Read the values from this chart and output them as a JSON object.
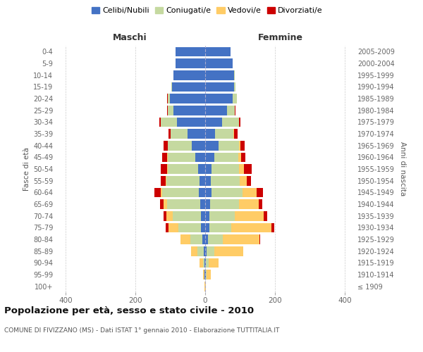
{
  "age_groups": [
    "100+",
    "95-99",
    "90-94",
    "85-89",
    "80-84",
    "75-79",
    "70-74",
    "65-69",
    "60-64",
    "55-59",
    "50-54",
    "45-49",
    "40-44",
    "35-39",
    "30-34",
    "25-29",
    "20-24",
    "15-19",
    "10-14",
    "5-9",
    "0-4"
  ],
  "birth_years": [
    "≤ 1909",
    "1910-1914",
    "1915-1919",
    "1920-1924",
    "1925-1929",
    "1930-1934",
    "1935-1939",
    "1940-1944",
    "1945-1949",
    "1950-1954",
    "1955-1959",
    "1960-1964",
    "1965-1969",
    "1970-1974",
    "1975-1979",
    "1980-1984",
    "1985-1989",
    "1990-1994",
    "1995-1999",
    "2000-2004",
    "2005-2009"
  ],
  "maschi_celibi": [
    1,
    2,
    3,
    5,
    8,
    12,
    13,
    14,
    18,
    16,
    20,
    28,
    38,
    50,
    80,
    90,
    100,
    95,
    90,
    85,
    85
  ],
  "maschi_coniugati": [
    0,
    0,
    3,
    18,
    35,
    65,
    80,
    95,
    105,
    95,
    88,
    80,
    70,
    48,
    48,
    18,
    8,
    2,
    1,
    0,
    0
  ],
  "maschi_vedovi": [
    1,
    5,
    10,
    18,
    28,
    28,
    18,
    10,
    5,
    3,
    2,
    1,
    0,
    0,
    0,
    0,
    0,
    0,
    0,
    0,
    0
  ],
  "maschi_divorziati": [
    0,
    0,
    0,
    0,
    0,
    8,
    8,
    10,
    18,
    14,
    18,
    14,
    12,
    6,
    3,
    2,
    1,
    0,
    0,
    0,
    0
  ],
  "femmine_nubili": [
    1,
    2,
    3,
    5,
    8,
    12,
    13,
    14,
    18,
    16,
    18,
    26,
    38,
    28,
    48,
    62,
    78,
    82,
    82,
    78,
    72
  ],
  "femmine_coniugate": [
    0,
    2,
    8,
    22,
    42,
    62,
    72,
    82,
    88,
    82,
    78,
    68,
    58,
    52,
    48,
    22,
    12,
    4,
    2,
    0,
    0
  ],
  "femmine_vedove": [
    2,
    12,
    28,
    82,
    105,
    115,
    82,
    58,
    42,
    22,
    15,
    8,
    5,
    3,
    1,
    1,
    0,
    0,
    0,
    0,
    0
  ],
  "femmine_divorziate": [
    0,
    0,
    0,
    0,
    2,
    8,
    10,
    10,
    18,
    12,
    22,
    14,
    12,
    10,
    4,
    2,
    1,
    0,
    0,
    0,
    0
  ],
  "colors_celibi": "#4472C4",
  "colors_coniugati": "#C5D9A0",
  "colors_vedovi": "#FFCC66",
  "colors_divorziati": "#CC0000",
  "title": "Popolazione per età, sesso e stato civile - 2010",
  "subtitle": "COMUNE DI FIVIZZANO (MS) - Dati ISTAT 1° gennaio 2010 - Elaborazione TUTTITALIA.IT",
  "legend_labels": [
    "Celibi/Nubili",
    "Coniugati/e",
    "Vedovi/e",
    "Divorziati/e"
  ],
  "maschi_label": "Maschi",
  "femmine_label": "Femmine",
  "ylabel_left": "Fasce di età",
  "ylabel_right": "Anni di nascita",
  "xlim": 430,
  "xticks": [
    -400,
    -200,
    0,
    200,
    400
  ],
  "xtick_labels": [
    "400",
    "200",
    "0",
    "200",
    "400"
  ],
  "bg_color": "#ffffff",
  "grid_color": "#cccccc"
}
